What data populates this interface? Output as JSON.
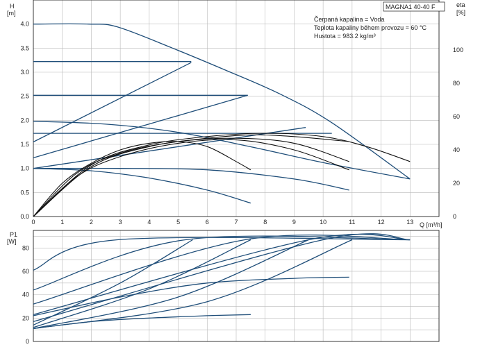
{
  "info": {
    "model": "MAGNA1 40-40 F",
    "lines": [
      "Čerpaná kapalina = Voda",
      "Teplota kapaliny během provozu = 60 °C",
      "Hustota = 983.2 kg/m³"
    ]
  },
  "colors": {
    "curve": "#1f4e79",
    "eta_curve": "#111111",
    "grid": "#b9b9b9",
    "axis": "#222222"
  },
  "chart_data": [
    {
      "type": "line",
      "title": "",
      "ylabel": "H",
      "ylabel_unit": "[m]",
      "y2label": "eta",
      "y2label_unit": "[%]",
      "xlabel": "Q [m³/h]",
      "xlim": [
        0,
        14
      ],
      "ylim": [
        0,
        4.5
      ],
      "y2lim": [
        0,
        130
      ],
      "grid": true,
      "x_ticks": [
        "0",
        "1",
        "2",
        "3",
        "4",
        "5",
        "6",
        "7",
        "8",
        "9",
        "10",
        "11",
        "12",
        "13"
      ],
      "y_ticks": [
        "0.0",
        "0.5",
        "1.0",
        "1.5",
        "2.0",
        "2.5",
        "3.0",
        "3.5",
        "4.0"
      ],
      "y2_ticks": [
        "0",
        "20",
        "40",
        "60",
        "80",
        "100"
      ],
      "series": [
        {
          "axis": "left",
          "x": [
            0,
            1.9,
            2.9,
            4.8,
            6.6,
            8.5,
            10.3,
            13
          ],
          "y": [
            4.0,
            4.0,
            3.94,
            3.5,
            3.05,
            2.55,
            1.95,
            0.78
          ]
        },
        {
          "axis": "left",
          "x": [
            0,
            5.45
          ],
          "y": [
            3.22,
            3.22
          ]
        },
        {
          "axis": "left",
          "x": [
            0,
            7.4
          ],
          "y": [
            2.52,
            2.52
          ]
        },
        {
          "axis": "left",
          "x": [
            0,
            10.3
          ],
          "y": [
            1.73,
            1.73
          ]
        },
        {
          "axis": "left",
          "x": [
            0,
            5.45
          ],
          "y": [
            1.55,
            3.2
          ]
        },
        {
          "axis": "left",
          "x": [
            0,
            7.4
          ],
          "y": [
            1.22,
            2.52
          ]
        },
        {
          "axis": "left",
          "x": [
            0,
            9.4
          ],
          "y": [
            1.0,
            1.85
          ]
        },
        {
          "axis": "left",
          "x": [
            0,
            2.5,
            5.0,
            7.5,
            10.0,
            13.0
          ],
          "y": [
            1.98,
            1.92,
            1.75,
            1.45,
            1.12,
            0.78
          ]
        },
        {
          "axis": "left",
          "x": [
            0,
            3,
            6,
            9,
            10.9
          ],
          "y": [
            1.0,
            1.0,
            0.97,
            0.78,
            0.55
          ]
        },
        {
          "axis": "left",
          "x": [
            0,
            2,
            4,
            6,
            7.5
          ],
          "y": [
            1.0,
            0.95,
            0.8,
            0.55,
            0.28
          ]
        },
        {
          "axis": "right",
          "name_role": "eta",
          "x": [
            0,
            1,
            2,
            3,
            4,
            5,
            6,
            7,
            7.5
          ],
          "y": [
            0,
            20,
            32,
            40,
            44,
            45,
            42,
            33,
            28
          ]
        },
        {
          "axis": "right",
          "name_role": "eta",
          "x": [
            0,
            1.5,
            3,
            5,
            7,
            9,
            10.9
          ],
          "y": [
            0,
            24,
            36,
            44,
            46,
            40,
            28
          ]
        },
        {
          "axis": "right",
          "name_role": "eta",
          "x": [
            0,
            1.5,
            3,
            5,
            7,
            9,
            10.9
          ],
          "y": [
            0,
            26,
            38,
            45,
            47,
            44,
            33
          ]
        },
        {
          "axis": "right",
          "name_role": "eta",
          "x": [
            0,
            2,
            4,
            6,
            7.5,
            9,
            10.9
          ],
          "y": [
            0,
            30,
            42,
            47,
            49,
            48,
            45
          ]
        },
        {
          "axis": "right",
          "name_role": "eta",
          "x": [
            0,
            2,
            4,
            6,
            8,
            10,
            11.5,
            13
          ],
          "y": [
            0,
            31,
            43,
            48,
            50,
            48,
            42,
            33
          ]
        }
      ]
    },
    {
      "type": "line",
      "title": "",
      "ylabel": "P1",
      "ylabel_unit": "[W]",
      "xlim": [
        0,
        14
      ],
      "ylim": [
        0,
        95
      ],
      "grid": true,
      "y_ticks": [
        "0",
        "20",
        "40",
        "60",
        "80"
      ],
      "series": [
        {
          "x": [
            0,
            2.9,
            13
          ],
          "y": [
            61,
            87,
            87
          ]
        },
        {
          "x": [
            0,
            5.25,
            13
          ],
          "y": [
            44,
            87,
            87
          ]
        },
        {
          "x": [
            0,
            7.3,
            13
          ],
          "y": [
            32,
            87,
            87
          ]
        },
        {
          "x": [
            0,
            9.5,
            13
          ],
          "y": [
            23,
            87,
            87
          ]
        },
        {
          "x": [
            0,
            10,
            13
          ],
          "y": [
            17,
            87,
            87
          ]
        },
        {
          "x": [
            0,
            3,
            6,
            9,
            10.9
          ],
          "y": [
            22,
            38,
            50,
            54,
            55
          ]
        },
        {
          "x": [
            0,
            2,
            4,
            6,
            7.5
          ],
          "y": [
            11,
            17,
            20,
            22,
            23
          ]
        },
        {
          "x": [
            0,
            3,
            5.5
          ],
          "y": [
            14,
            50,
            87
          ]
        },
        {
          "x": [
            0,
            4,
            7.5
          ],
          "y": [
            12,
            45,
            87
          ]
        },
        {
          "x": [
            0,
            5,
            9.5
          ],
          "y": [
            11,
            38,
            87
          ]
        },
        {
          "x": [
            0,
            6,
            11
          ],
          "y": [
            11,
            34,
            87
          ]
        }
      ]
    }
  ]
}
